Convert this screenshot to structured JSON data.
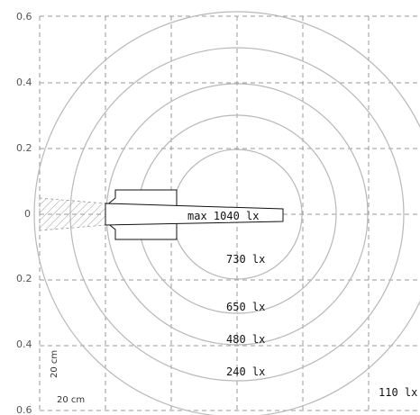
{
  "axis": {
    "ticks": [
      "0.6",
      "0.4",
      "0.2",
      "0",
      "0.2",
      "0.4",
      "0.6"
    ]
  },
  "contours": {
    "max_label": "max 1040 lx",
    "labels": [
      "730 lx",
      "650 lx",
      "480 lx",
      "240 lx",
      "110 lx"
    ]
  },
  "scale": {
    "horizontal": "20 cm",
    "vertical": "20 cm"
  },
  "colors": {
    "grid": "#9a9a9a",
    "rings": "#b8b8b8",
    "lamp": "#111111"
  }
}
